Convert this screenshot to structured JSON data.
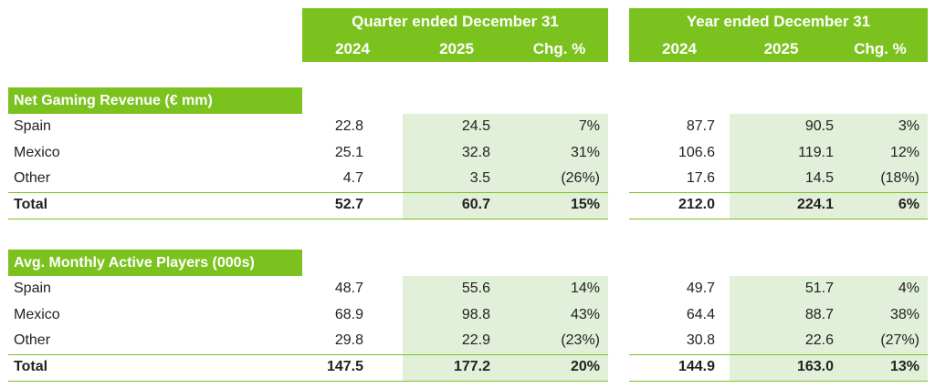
{
  "header": {
    "quarter_title": "Quarter ended December 31",
    "year_title": "Year ended December 31",
    "quarter_cols": [
      "2024",
      "2025",
      "Chg. %"
    ],
    "year_cols": [
      "2024",
      "2025",
      "Chg. %"
    ]
  },
  "sections": [
    {
      "title": "Net Gaming Revenue (€ mm)",
      "rows": [
        {
          "label": "Spain",
          "q": [
            "22.8",
            "24.5",
            "7%"
          ],
          "y": [
            "87.7",
            "90.5",
            "3%"
          ]
        },
        {
          "label": "Mexico",
          "q": [
            "25.1",
            "32.8",
            "31%"
          ],
          "y": [
            "106.6",
            "119.1",
            "12%"
          ]
        },
        {
          "label": "Other",
          "q": [
            "4.7",
            "3.5",
            "(26%)"
          ],
          "y": [
            "17.6",
            "14.5",
            "(18%)"
          ]
        }
      ],
      "total": {
        "label": "Total",
        "q": [
          "52.7",
          "60.7",
          "15%"
        ],
        "y": [
          "212.0",
          "224.1",
          "6%"
        ]
      }
    },
    {
      "title": "Avg. Monthly Active Players (000s)",
      "rows": [
        {
          "label": "Spain",
          "q": [
            "48.7",
            "55.6",
            "14%"
          ],
          "y": [
            "49.7",
            "51.7",
            "4%"
          ]
        },
        {
          "label": "Mexico",
          "q": [
            "68.9",
            "98.8",
            "43%"
          ],
          "y": [
            "64.4",
            "88.7",
            "38%"
          ]
        },
        {
          "label": "Other",
          "q": [
            "29.8",
            "22.9",
            "(23%)"
          ],
          "y": [
            "30.8",
            "22.6",
            "(27%)"
          ]
        }
      ],
      "total": {
        "label": "Total",
        "q": [
          "147.5",
          "177.2",
          "20%"
        ],
        "y": [
          "144.9",
          "163.0",
          "13%"
        ]
      }
    }
  ],
  "colors": {
    "accent": "#7cc21f",
    "shade": "#e2efd9"
  }
}
